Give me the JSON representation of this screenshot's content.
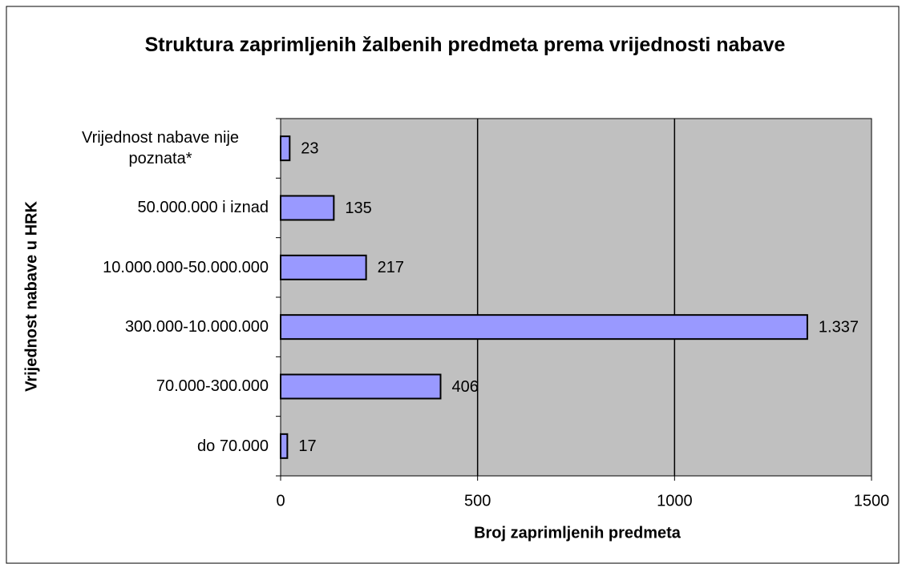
{
  "chart_data": {
    "type": "bar",
    "orientation": "horizontal",
    "title": "Struktura zaprimljenih žalbenih predmeta prema vrijednosti nabave",
    "categories": [
      "Vrijednost nabave nije poznata*",
      "50.000.000 i iznad",
      "10.000.000-50.000.000",
      "300.000-10.000.000",
      "70.000-300.000",
      "do 70.000"
    ],
    "values": [
      23,
      135,
      217,
      1337,
      406,
      17
    ],
    "value_labels": [
      "23",
      "135",
      "217",
      "1.337",
      "406",
      "17"
    ],
    "color": "#9999ff",
    "xlabel": "Broj zaprimljenih predmeta",
    "ylabel": "Vrijednost nabave u HRK",
    "xlim": [
      0,
      1500
    ],
    "xticks": [
      0,
      500,
      1000,
      1500
    ],
    "grid": true
  }
}
